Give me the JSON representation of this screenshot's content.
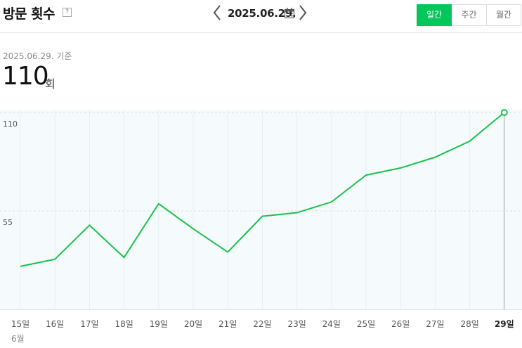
{
  "header": {
    "title": "방문 횟수",
    "help_glyph": "?",
    "date": "2025.06.29.",
    "icons": {
      "prev": "chevron-left-icon",
      "next": "chevron-right-icon",
      "calendar": "calendar-icon"
    }
  },
  "tabs": [
    {
      "label": "일간",
      "active": true
    },
    {
      "label": "주간",
      "active": false
    },
    {
      "label": "월간",
      "active": false
    }
  ],
  "summary": {
    "basis": "2025.06.29. 기준",
    "value": "110",
    "unit": "회"
  },
  "colors": {
    "accent": "#03c75a",
    "line": "#19c34a",
    "plot_bg": "#f5fafd"
  },
  "chart_data": {
    "type": "line",
    "categories": [
      "15일",
      "16일",
      "17일",
      "18일",
      "19일",
      "20일",
      "21일",
      "22일",
      "23일",
      "24일",
      "25일",
      "26일",
      "27일",
      "28일",
      "29일"
    ],
    "values": [
      24,
      28,
      47,
      29,
      59,
      45,
      32,
      52,
      54,
      60,
      75,
      79,
      85,
      94,
      110
    ],
    "month_label": "6월",
    "yticks": [
      55,
      110
    ],
    "ylim": [
      0,
      110
    ],
    "highlight_index": 14,
    "grid": true
  }
}
